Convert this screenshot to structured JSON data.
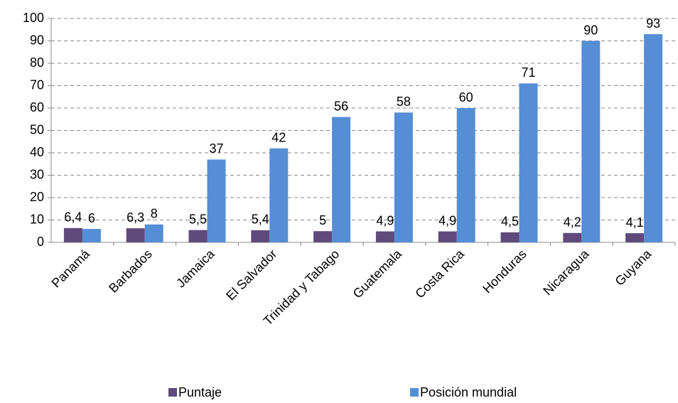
{
  "chart_data": {
    "type": "bar",
    "categories": [
      "Panamá",
      "Barbados",
      "Jamaica",
      "El Salvador",
      "Trinidad y Tabago",
      "Guatemala",
      "Costa Rica",
      "Honduras",
      "Nicaragua",
      "Guyana"
    ],
    "series": [
      {
        "name": "Puntaje",
        "color": "#604a7b",
        "values": [
          6.4,
          6.3,
          5.5,
          5.4,
          5,
          4.9,
          4.9,
          4.5,
          4.2,
          4.1
        ],
        "value_labels": [
          "6,4",
          "6,3",
          "5,5",
          "5,4",
          "5",
          "4,9",
          "4,9",
          "4,5",
          "4,2",
          "4,1"
        ]
      },
      {
        "name": "Posición mundial",
        "color": "#558ed5",
        "values": [
          6,
          8,
          37,
          42,
          56,
          58,
          60,
          71,
          90,
          93
        ]
      }
    ],
    "ylim": [
      0,
      100
    ],
    "yticks": [
      0,
      10,
      20,
      30,
      40,
      50,
      60,
      70,
      80,
      90,
      100
    ],
    "grid": true,
    "legend": "bottom"
  }
}
